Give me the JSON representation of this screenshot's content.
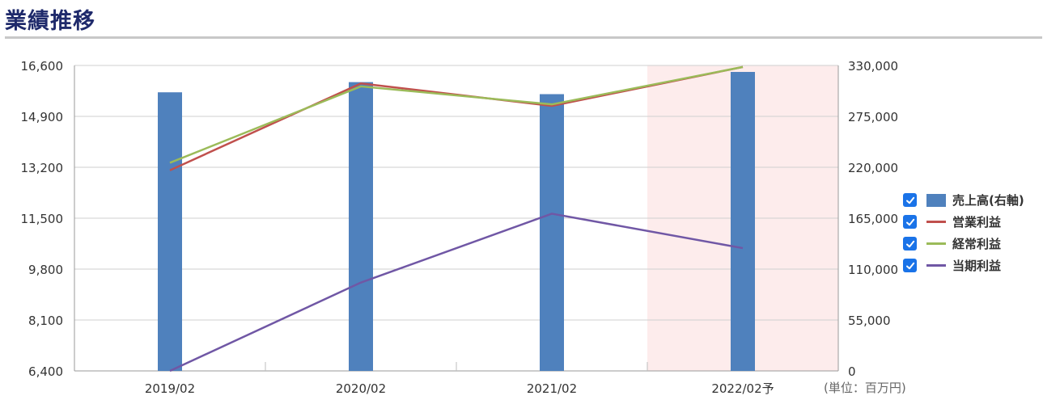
{
  "header": {
    "title": "業績推移"
  },
  "unit_label": "(単位：百万円)",
  "legend": [
    {
      "label": "売上高(右軸)",
      "color": "#4f81bd",
      "kind": "bar",
      "checked": true
    },
    {
      "label": "営業利益",
      "color": "#c0504d",
      "kind": "line",
      "checked": true
    },
    {
      "label": "経常利益",
      "color": "#9bbb59",
      "kind": "line",
      "checked": true
    },
    {
      "label": "当期利益",
      "color": "#7057a5",
      "kind": "line",
      "checked": true
    }
  ],
  "chart_data": {
    "type": "bar",
    "categories": [
      "2019/02",
      "2020/02",
      "2021/02",
      "2022/02予"
    ],
    "forecast_highlight": {
      "category": "2022/02予",
      "color": "#fdecec"
    },
    "left_axis": {
      "ylim": [
        6400,
        16600
      ],
      "ticks": [
        "6,400",
        "8,100",
        "9,800",
        "11,500",
        "13,200",
        "14,900",
        "16,600"
      ]
    },
    "right_axis": {
      "ylim": [
        0,
        330000
      ],
      "ticks": [
        "0",
        "55,000",
        "110,000",
        "165,000",
        "220,000",
        "275,000",
        "330,000"
      ]
    },
    "grid": true,
    "legend_position": "right",
    "series": [
      {
        "name": "売上高(右軸)",
        "type": "bar",
        "axis": "right",
        "color": "#4f81bd",
        "values": [
          301000,
          312000,
          299000,
          323000
        ]
      },
      {
        "name": "営業利益",
        "type": "line",
        "axis": "left",
        "color": "#c0504d",
        "values": [
          13100,
          16000,
          15250,
          16550
        ]
      },
      {
        "name": "経常利益",
        "type": "line",
        "axis": "left",
        "color": "#9bbb59",
        "values": [
          13350,
          15900,
          15300,
          16550
        ]
      },
      {
        "name": "当期利益",
        "type": "line",
        "axis": "left",
        "color": "#7057a5",
        "values": [
          6400,
          9350,
          11650,
          10500
        ]
      }
    ]
  }
}
